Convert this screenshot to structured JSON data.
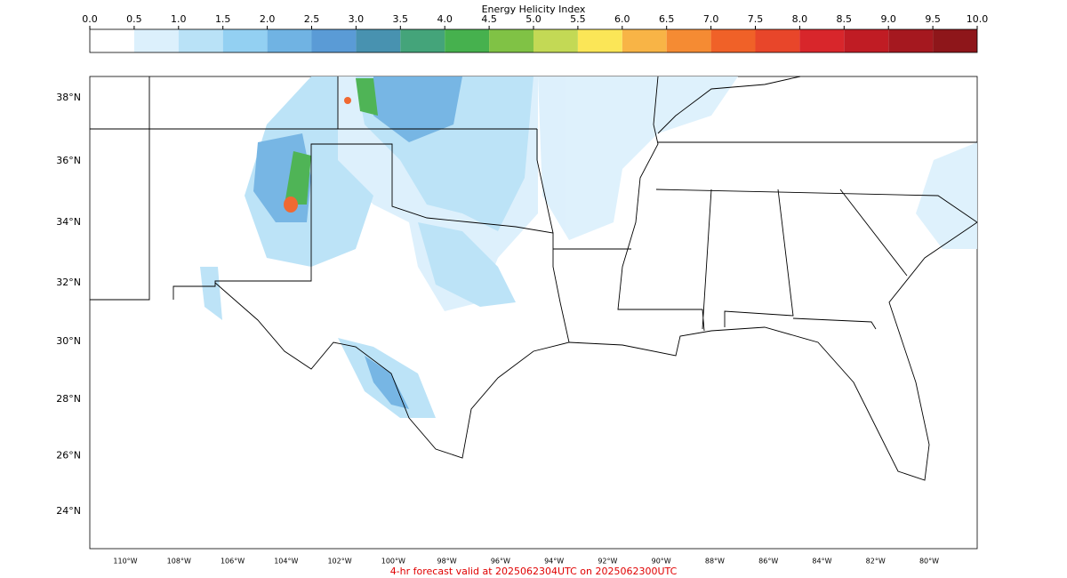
{
  "colorbar": {
    "title": "Energy Helicity Index",
    "ticks": [
      {
        "value": 0,
        "label": "0.0"
      },
      {
        "value": 0.5,
        "label": "0.5"
      },
      {
        "value": 1,
        "label": "1.0"
      },
      {
        "value": 1.5,
        "label": "1.5"
      },
      {
        "value": 2,
        "label": "2.0"
      },
      {
        "value": 2.5,
        "label": "2.5"
      },
      {
        "value": 3,
        "label": "3.0"
      },
      {
        "value": 3.5,
        "label": "3.5"
      },
      {
        "value": 4,
        "label": "4.0"
      },
      {
        "value": 4.5,
        "label": "4.5"
      },
      {
        "value": 5,
        "label": "5.0"
      },
      {
        "value": 5.5,
        "label": "5.5"
      },
      {
        "value": 6,
        "label": "6.0"
      },
      {
        "value": 6.5,
        "label": "6.5"
      },
      {
        "value": 7,
        "label": "7.0"
      },
      {
        "value": 7.5,
        "label": "7.5"
      },
      {
        "value": 8,
        "label": "8.0"
      },
      {
        "value": 8.5,
        "label": "8.5"
      },
      {
        "value": 9,
        "label": "9.0"
      },
      {
        "value": 9.5,
        "label": "9.5"
      },
      {
        "value": 10,
        "label": "10.0"
      }
    ],
    "colors": [
      "#ffffff",
      "#dcf0fc",
      "#b9e2f7",
      "#93d0f2",
      "#70b3e3",
      "#5a9bd6",
      "#4892b0",
      "#44a47a",
      "#46b14e",
      "#80c245",
      "#c3d955",
      "#fbe657",
      "#f8b446",
      "#f58b33",
      "#f06128",
      "#e8462a",
      "#d8262b",
      "#c01c24",
      "#a5181f",
      "#8e161a"
    ]
  },
  "map": {
    "lat_labels": [
      {
        "value": 38,
        "label": "38°N"
      },
      {
        "value": 36,
        "label": "36°N"
      },
      {
        "value": 34,
        "label": "34°N"
      },
      {
        "value": 32,
        "label": "32°N"
      },
      {
        "value": 30,
        "label": "30°N"
      },
      {
        "value": 28,
        "label": "28°N"
      },
      {
        "value": 26,
        "label": "26°N"
      },
      {
        "value": 24,
        "label": "24°N"
      }
    ],
    "lon_labels": [
      {
        "value": -110,
        "label": "110°W"
      },
      {
        "value": -108,
        "label": "108°W"
      },
      {
        "value": -106,
        "label": "106°W"
      },
      {
        "value": -104,
        "label": "104°W"
      },
      {
        "value": -102,
        "label": "102°W"
      },
      {
        "value": -100,
        "label": "100°W"
      },
      {
        "value": -98,
        "label": "98°W"
      },
      {
        "value": -96,
        "label": "96°W"
      },
      {
        "value": -94,
        "label": "94°W"
      },
      {
        "value": -92,
        "label": "92°W"
      },
      {
        "value": -90,
        "label": "90°W"
      },
      {
        "value": -88,
        "label": "88°W"
      },
      {
        "value": -86,
        "label": "86°W"
      },
      {
        "value": -84,
        "label": "84°W"
      },
      {
        "value": -82,
        "label": "82°W"
      },
      {
        "value": -80,
        "label": "80°W"
      }
    ]
  },
  "footer": "4-hr forecast valid at 2025062304UTC on 2025062300UTC"
}
